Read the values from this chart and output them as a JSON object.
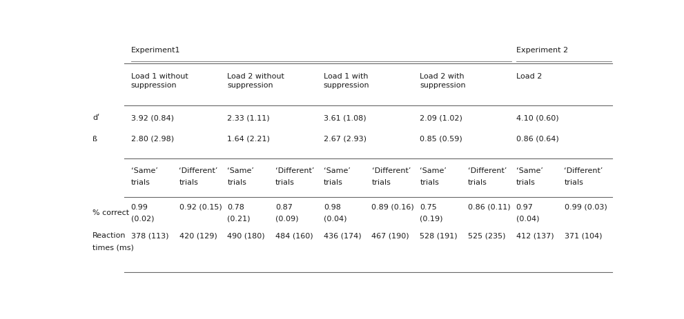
{
  "exp1_label": "Experiment1",
  "exp2_label": "Experiment 2",
  "top_headers": [
    "Load 1 without\nsuppression",
    "Load 2 without\nsuppression",
    "Load 1 with\nsuppression",
    "Load 2 with\nsuppression",
    "Load 2"
  ],
  "row_labels_top": [
    "dʹ",
    "ß"
  ],
  "top_data": [
    [
      "3.92 (0.84)",
      "2.33 (1.11)",
      "3.61 (1.08)",
      "2.09 (1.02)",
      "4.10 (0.60)"
    ],
    [
      "2.80 (2.98)",
      "1.64 (2.21)",
      "2.67 (2.93)",
      "0.85 (0.59)",
      "0.86 (0.64)"
    ]
  ],
  "trial_col_headers": [
    [
      "‘Same’",
      "trials"
    ],
    [
      "‘Different’",
      "trials"
    ],
    [
      "‘Same’",
      "trials"
    ],
    [
      "‘Different’",
      "trials"
    ],
    [
      "‘Same’",
      "trials"
    ],
    [
      "‘Different’",
      "trials"
    ],
    [
      "‘Same’",
      "trials"
    ],
    [
      "‘Different’",
      "trials"
    ],
    [
      "‘Same’",
      "trials"
    ],
    [
      "‘Different’",
      "trials"
    ]
  ],
  "row_labels_bottom": [
    "% correct",
    "Reaction\ntimes (ms)"
  ],
  "bottom_data": [
    [
      "0.99\n(0.02)",
      "0.92 (0.15)",
      "0.78\n(0.21)",
      "0.87\n(0.09)",
      "0.98\n(0.04)",
      "0.89 (0.16)",
      "0.75\n(0.19)",
      "0.86 (0.11)",
      "0.97\n(0.04)",
      "0.99 (0.03)"
    ],
    [
      "378 (113)",
      "420 (129)",
      "490 (180)",
      "484 (160)",
      "436 (174)",
      "467 (190)",
      "528 (191)",
      "525 (235)",
      "412 (137)",
      "371 (104)"
    ]
  ],
  "bg_color": "#ffffff",
  "text_color": "#1a1a1a",
  "line_color": "#666666",
  "font_size": 8.0,
  "font_family": "DejaVu Sans"
}
